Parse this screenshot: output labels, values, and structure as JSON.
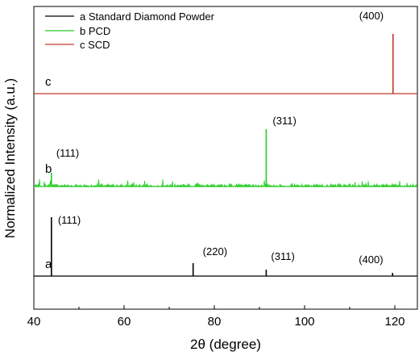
{
  "chart_data": {
    "type": "line",
    "xlabel": "2θ (degree)",
    "ylabel": "Normalized Intensity (a.u.)",
    "xlim": [
      40,
      125
    ],
    "x_ticks": [
      "40",
      "60",
      "80",
      "100",
      "120"
    ],
    "grid": false,
    "legend_position": "top-left",
    "series": [
      {
        "name": "a Standard Diamond Powder",
        "letter": "a",
        "color": "#000000",
        "peaks": [
          {
            "x": 43.9,
            "height": 0.73,
            "label": "(111)"
          },
          {
            "x": 75.3,
            "height": 0.16,
            "label": "(220)"
          },
          {
            "x": 91.5,
            "height": 0.08,
            "label": "(311)"
          },
          {
            "x": 119.5,
            "height": 0.04,
            "label": "(400)"
          }
        ]
      },
      {
        "name": "b PCD",
        "letter": "b",
        "color": "#22cc22",
        "peaks": [
          {
            "x": 43.9,
            "height": 0.17,
            "label": "(111)"
          },
          {
            "x": 91.5,
            "height": 0.71,
            "label": "(311)"
          }
        ]
      },
      {
        "name": "c SCD",
        "letter": "c",
        "color": "#c0392b",
        "peaks": [
          {
            "x": 119.6,
            "height": 0.74,
            "label": "(400)"
          }
        ]
      }
    ]
  }
}
